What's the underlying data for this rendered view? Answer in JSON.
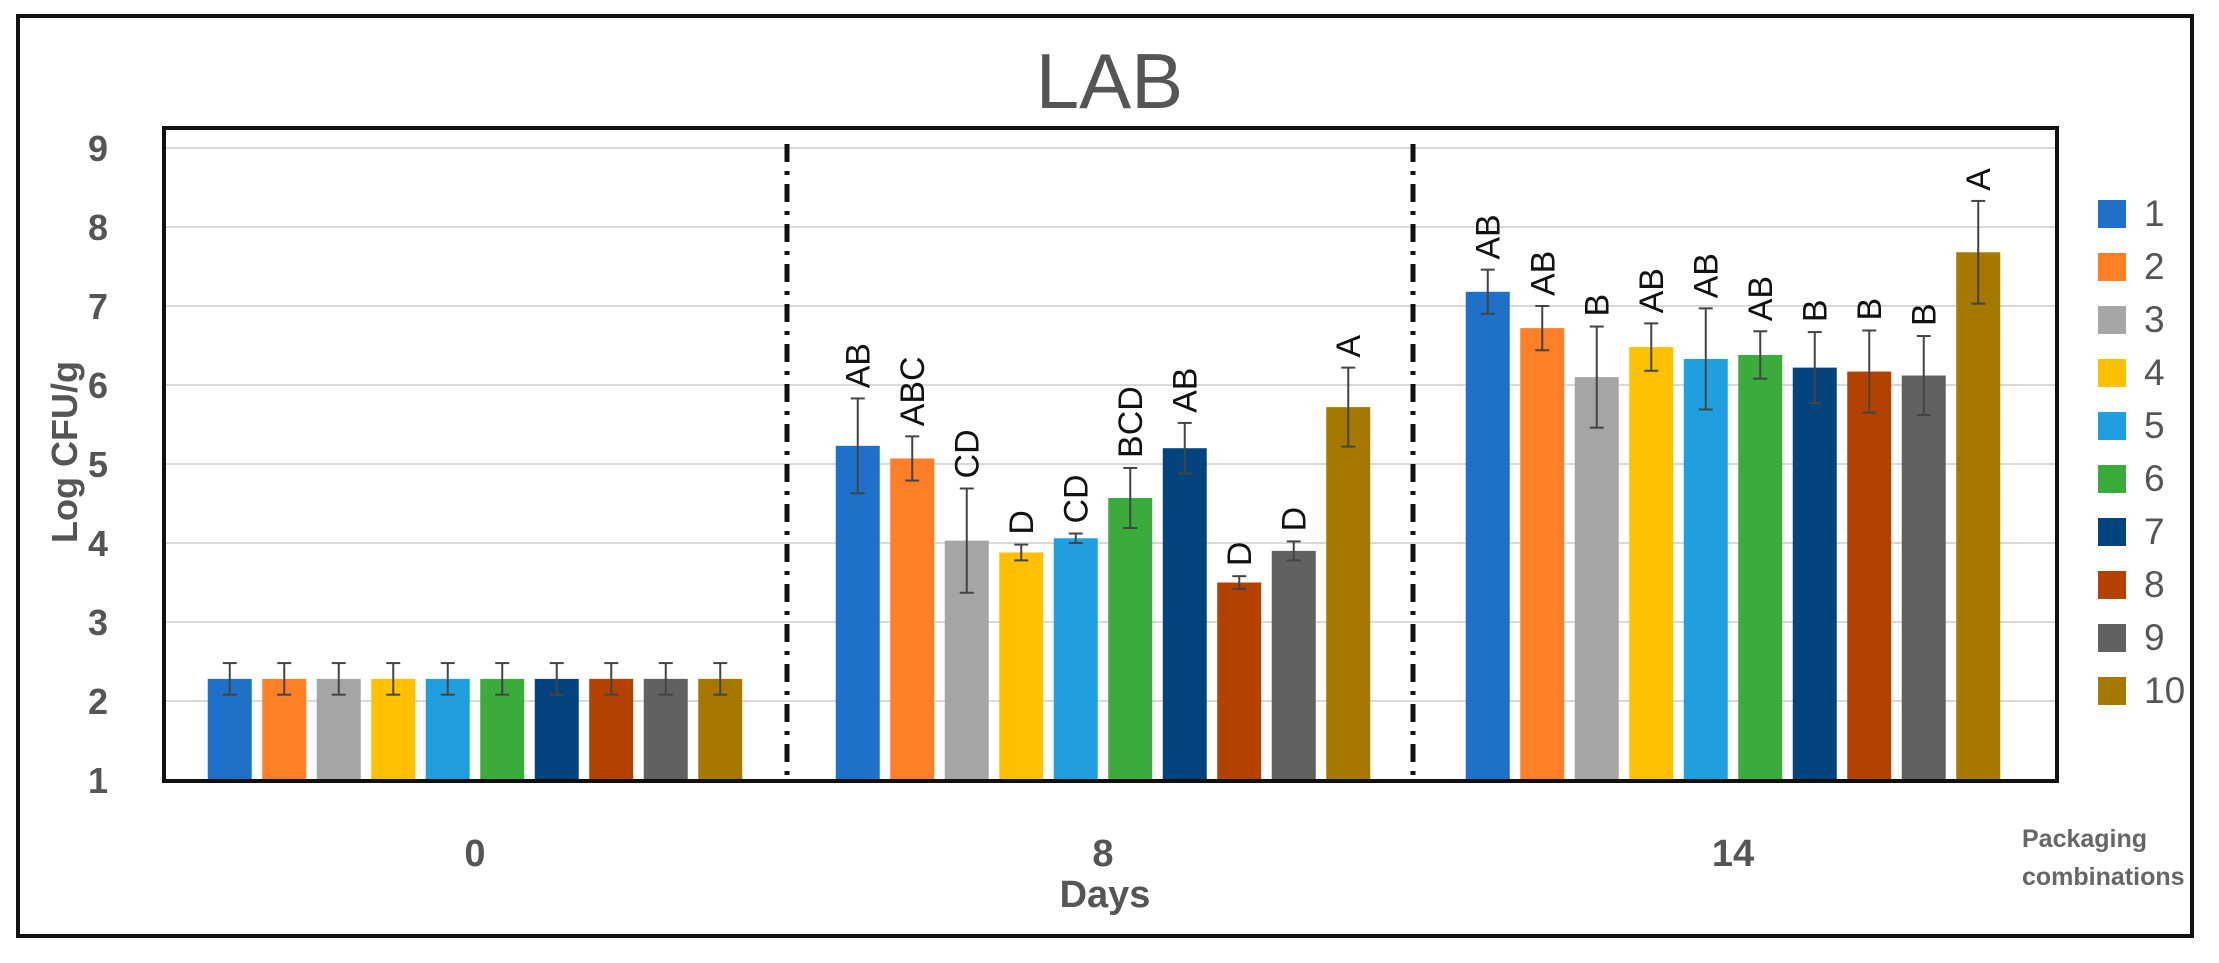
{
  "chart_data": {
    "type": "bar",
    "title": "LAB",
    "xlabel": "Days",
    "ylabel": "Log CFU/g",
    "legend_title": "Packaging combinations",
    "legend_position": "right",
    "grid": true,
    "ylim": [
      1,
      9
    ],
    "yticks": [
      1,
      2,
      3,
      4,
      5,
      6,
      7,
      8,
      9
    ],
    "categories": [
      "0",
      "8",
      "14"
    ],
    "series": [
      {
        "name": "1",
        "color": "#1f70c8",
        "values": [
          2.28,
          5.23,
          7.18
        ],
        "errors": [
          0.2,
          0.6,
          0.28
        ],
        "labels": [
          "",
          "AB",
          "AB"
        ]
      },
      {
        "name": "2",
        "color": "#fd7f27",
        "values": [
          2.28,
          5.07,
          6.72
        ],
        "errors": [
          0.2,
          0.28,
          0.28
        ],
        "labels": [
          "",
          "ABC",
          "AB"
        ]
      },
      {
        "name": "3",
        "color": "#a5a5a5",
        "values": [
          2.28,
          4.03,
          6.1
        ],
        "errors": [
          0.2,
          0.66,
          0.64
        ],
        "labels": [
          "",
          "CD",
          "B"
        ]
      },
      {
        "name": "4",
        "color": "#ffc000",
        "values": [
          2.28,
          3.88,
          6.48
        ],
        "errors": [
          0.2,
          0.1,
          0.3
        ],
        "labels": [
          "",
          "D",
          "AB"
        ]
      },
      {
        "name": "5",
        "color": "#1f9fe0",
        "values": [
          2.28,
          4.06,
          6.33
        ],
        "errors": [
          0.2,
          0.06,
          0.64
        ],
        "labels": [
          "",
          "CD",
          "AB"
        ]
      },
      {
        "name": "6",
        "color": "#3bab3b",
        "values": [
          2.28,
          4.57,
          6.38
        ],
        "errors": [
          0.2,
          0.38,
          0.3
        ],
        "labels": [
          "",
          "BCD",
          "AB"
        ]
      },
      {
        "name": "7",
        "color": "#03447e",
        "values": [
          2.28,
          5.2,
          6.22
        ],
        "errors": [
          0.2,
          0.32,
          0.45
        ],
        "labels": [
          "",
          "AB",
          "B"
        ]
      },
      {
        "name": "8",
        "color": "#b34100",
        "values": [
          2.28,
          3.5,
          6.17
        ],
        "errors": [
          0.2,
          0.08,
          0.52
        ],
        "labels": [
          "",
          "D",
          "B"
        ]
      },
      {
        "name": "9",
        "color": "#616161",
        "values": [
          2.28,
          3.9,
          6.12
        ],
        "errors": [
          0.2,
          0.12,
          0.5
        ],
        "labels": [
          "",
          "D",
          "B"
        ]
      },
      {
        "name": "10",
        "color": "#a67800",
        "values": [
          2.28,
          5.72,
          7.68
        ],
        "errors": [
          0.2,
          0.5,
          0.65
        ],
        "labels": [
          "",
          "A",
          "A"
        ]
      }
    ]
  }
}
